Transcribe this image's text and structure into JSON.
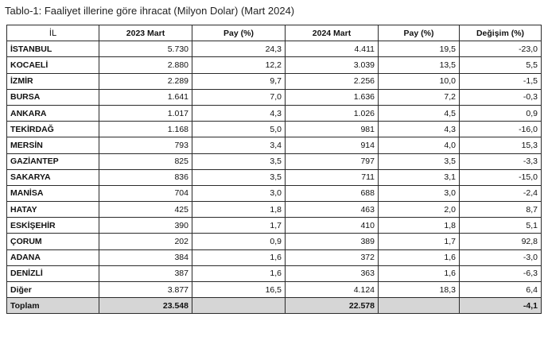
{
  "caption": "Tablo-1: Faaliyet illerine göre ihracat (Milyon Dolar) (Mart 2024)",
  "headers": {
    "il": "İL",
    "y2023": "2023 Mart",
    "pay1": "Pay  (%)",
    "y2024": "2024 Mart",
    "pay2": "Pay  (%)",
    "change": "Değişim (%)"
  },
  "rows": [
    {
      "il": "İSTANBUL",
      "y2023": "5.730",
      "pay1": "24,3",
      "y2024": "4.411",
      "pay2": "19,5",
      "change": "-23,0"
    },
    {
      "il": "KOCAELİ",
      "y2023": "2.880",
      "pay1": "12,2",
      "y2024": "3.039",
      "pay2": "13,5",
      "change": "5,5"
    },
    {
      "il": "İZMİR",
      "y2023": "2.289",
      "pay1": "9,7",
      "y2024": "2.256",
      "pay2": "10,0",
      "change": "-1,5"
    },
    {
      "il": "BURSA",
      "y2023": "1.641",
      "pay1": "7,0",
      "y2024": "1.636",
      "pay2": "7,2",
      "change": "-0,3"
    },
    {
      "il": "ANKARA",
      "y2023": "1.017",
      "pay1": "4,3",
      "y2024": "1.026",
      "pay2": "4,5",
      "change": "0,9"
    },
    {
      "il": "TEKİRDAĞ",
      "y2023": "1.168",
      "pay1": "5,0",
      "y2024": "981",
      "pay2": "4,3",
      "change": "-16,0"
    },
    {
      "il": "MERSİN",
      "y2023": "793",
      "pay1": "3,4",
      "y2024": "914",
      "pay2": "4,0",
      "change": "15,3"
    },
    {
      "il": "GAZİANTEP",
      "y2023": "825",
      "pay1": "3,5",
      "y2024": "797",
      "pay2": "3,5",
      "change": "-3,3"
    },
    {
      "il": "SAKARYA",
      "y2023": "836",
      "pay1": "3,5",
      "y2024": "711",
      "pay2": "3,1",
      "change": "-15,0"
    },
    {
      "il": "MANİSA",
      "y2023": "704",
      "pay1": "3,0",
      "y2024": "688",
      "pay2": "3,0",
      "change": "-2,4"
    },
    {
      "il": "HATAY",
      "y2023": "425",
      "pay1": "1,8",
      "y2024": "463",
      "pay2": "2,0",
      "change": "8,7"
    },
    {
      "il": "ESKİŞEHİR",
      "y2023": "390",
      "pay1": "1,7",
      "y2024": "410",
      "pay2": "1,8",
      "change": "5,1"
    },
    {
      "il": "ÇORUM",
      "y2023": "202",
      "pay1": "0,9",
      "y2024": "389",
      "pay2": "1,7",
      "change": "92,8"
    },
    {
      "il": "ADANA",
      "y2023": "384",
      "pay1": "1,6",
      "y2024": "372",
      "pay2": "1,6",
      "change": "-3,0"
    },
    {
      "il": "DENİZLİ",
      "y2023": "387",
      "pay1": "1,6",
      "y2024": "363",
      "pay2": "1,6",
      "change": "-6,3"
    },
    {
      "il": "Diğer",
      "y2023": "3.877",
      "pay1": "16,5",
      "y2024": "4.124",
      "pay2": "18,3",
      "change": "6,4"
    }
  ],
  "total": {
    "il": "Toplam",
    "y2023": "23.548",
    "y2024": "22.578",
    "change": "-4,1"
  }
}
